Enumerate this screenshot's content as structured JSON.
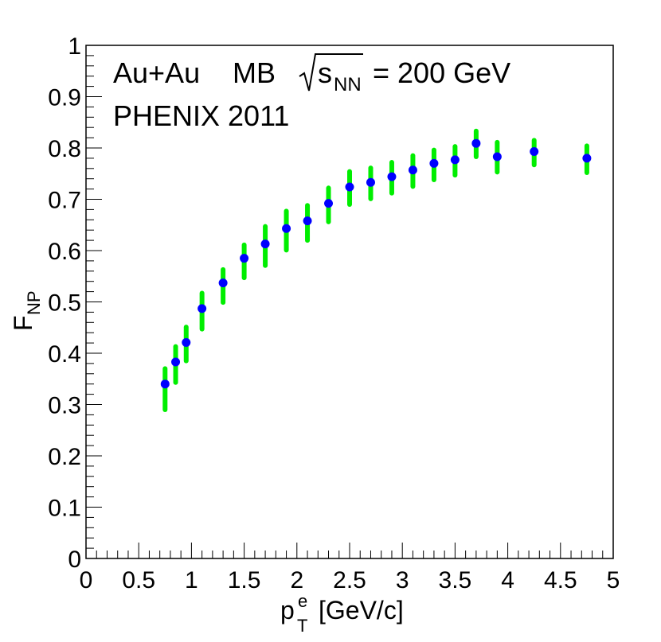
{
  "chart_data": {
    "type": "scatter",
    "annotations": {
      "system": "Au+Au",
      "centrality": "MB",
      "energy_symbol": "s",
      "energy_subscript": "NN",
      "energy_value": "= 200 GeV",
      "experiment": "PHENIX 2011"
    },
    "xlabel": {
      "main": "p",
      "sub": "T",
      "sup": "e",
      "unit": "[GeV/c]"
    },
    "ylabel": {
      "main": "F",
      "sub": "NP"
    },
    "xlim": [
      0,
      5
    ],
    "ylim": [
      0,
      1
    ],
    "x_ticks": [
      {
        "value": 0,
        "label": "0"
      },
      {
        "value": 0.5,
        "label": "0.5"
      },
      {
        "value": 1,
        "label": "1"
      },
      {
        "value": 1.5,
        "label": "1.5"
      },
      {
        "value": 2,
        "label": "2"
      },
      {
        "value": 2.5,
        "label": "2.5"
      },
      {
        "value": 3,
        "label": "3"
      },
      {
        "value": 3.5,
        "label": "3.5"
      },
      {
        "value": 4,
        "label": "4"
      },
      {
        "value": 4.5,
        "label": "4.5"
      },
      {
        "value": 5,
        "label": "5"
      }
    ],
    "y_ticks": [
      {
        "value": 0,
        "label": "0"
      },
      {
        "value": 0.1,
        "label": "0.1"
      },
      {
        "value": 0.2,
        "label": "0.2"
      },
      {
        "value": 0.3,
        "label": "0.3"
      },
      {
        "value": 0.4,
        "label": "0.4"
      },
      {
        "value": 0.5,
        "label": "0.5"
      },
      {
        "value": 0.6,
        "label": "0.6"
      },
      {
        "value": 0.7,
        "label": "0.7"
      },
      {
        "value": 0.8,
        "label": "0.8"
      },
      {
        "value": 0.9,
        "label": "0.9"
      },
      {
        "value": 1,
        "label": "1"
      }
    ],
    "series": [
      {
        "name": "F_NP",
        "marker_color": "#0000ff",
        "error_color": "#00ee00",
        "points": [
          {
            "x": 0.75,
            "y": 0.34,
            "lo": 0.29,
            "hi": 0.37
          },
          {
            "x": 0.85,
            "y": 0.383,
            "lo": 0.343,
            "hi": 0.413
          },
          {
            "x": 0.95,
            "y": 0.421,
            "lo": 0.385,
            "hi": 0.451
          },
          {
            "x": 1.1,
            "y": 0.487,
            "lo": 0.447,
            "hi": 0.517
          },
          {
            "x": 1.3,
            "y": 0.537,
            "lo": 0.499,
            "hi": 0.563
          },
          {
            "x": 1.5,
            "y": 0.585,
            "lo": 0.547,
            "hi": 0.611
          },
          {
            "x": 1.7,
            "y": 0.613,
            "lo": 0.571,
            "hi": 0.647
          },
          {
            "x": 1.9,
            "y": 0.643,
            "lo": 0.601,
            "hi": 0.677
          },
          {
            "x": 2.1,
            "y": 0.658,
            "lo": 0.62,
            "hi": 0.688
          },
          {
            "x": 2.3,
            "y": 0.692,
            "lo": 0.656,
            "hi": 0.722
          },
          {
            "x": 2.5,
            "y": 0.724,
            "lo": 0.69,
            "hi": 0.754
          },
          {
            "x": 2.7,
            "y": 0.733,
            "lo": 0.701,
            "hi": 0.761
          },
          {
            "x": 2.9,
            "y": 0.744,
            "lo": 0.712,
            "hi": 0.772
          },
          {
            "x": 3.1,
            "y": 0.757,
            "lo": 0.725,
            "hi": 0.785
          },
          {
            "x": 3.3,
            "y": 0.77,
            "lo": 0.738,
            "hi": 0.796
          },
          {
            "x": 3.5,
            "y": 0.777,
            "lo": 0.747,
            "hi": 0.803
          },
          {
            "x": 3.7,
            "y": 0.809,
            "lo": 0.783,
            "hi": 0.833
          },
          {
            "x": 3.9,
            "y": 0.783,
            "lo": 0.753,
            "hi": 0.811
          },
          {
            "x": 4.25,
            "y": 0.793,
            "lo": 0.767,
            "hi": 0.815
          },
          {
            "x": 4.75,
            "y": 0.78,
            "lo": 0.752,
            "hi": 0.804
          }
        ]
      }
    ]
  }
}
